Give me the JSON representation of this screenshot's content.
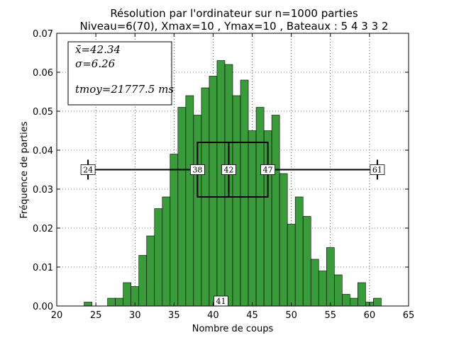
{
  "chart_data": {
    "type": "bar",
    "title_line1": "Résolution par l'ordinateur sur n=1000 parties",
    "title_line2": "Niveau=6(70), Xmax=10 , Ymax=10 , Bateaux : 5 4 3 3 2",
    "xlabel": "Nombre de coups",
    "ylabel": "Fréquence de parties",
    "xlim": [
      20,
      65
    ],
    "ylim": [
      0,
      0.07
    ],
    "xticks": [
      20,
      25,
      30,
      35,
      40,
      45,
      50,
      55,
      60,
      65
    ],
    "yticks": [
      0.0,
      0.01,
      0.02,
      0.03,
      0.04,
      0.05,
      0.06,
      0.07
    ],
    "ytick_labels": [
      "0.00",
      "0.01",
      "0.02",
      "0.03",
      "0.04",
      "0.05",
      "0.06",
      "0.07"
    ],
    "grid": true,
    "bar_color": "#3a9b3a",
    "bar_edge_color": "#000000",
    "bins": [
      24,
      25,
      26,
      27,
      28,
      29,
      30,
      31,
      32,
      33,
      34,
      35,
      36,
      37,
      38,
      39,
      40,
      41,
      42,
      43,
      44,
      45,
      46,
      47,
      48,
      49,
      50,
      51,
      52,
      53,
      54,
      55,
      56,
      57,
      58,
      59,
      60,
      61
    ],
    "values": [
      0.001,
      0.0,
      0.0,
      0.002,
      0.002,
      0.006,
      0.005,
      0.013,
      0.018,
      0.025,
      0.028,
      0.039,
      0.051,
      0.054,
      0.049,
      0.056,
      0.059,
      0.063,
      0.062,
      0.054,
      0.058,
      0.045,
      0.051,
      0.045,
      0.049,
      0.034,
      0.021,
      0.028,
      0.023,
      0.012,
      0.009,
      0.015,
      0.008,
      0.003,
      0.002,
      0.006,
      0.001,
      0.002
    ],
    "boxplot": {
      "min": 24,
      "q1": 38,
      "median": 42,
      "q3": 47,
      "max": 61,
      "y": 0.035,
      "box_low": 0.028,
      "box_high": 0.042,
      "labels": {
        "min": "24",
        "q1": "38",
        "median": "42",
        "q3": "47",
        "max": "61"
      }
    },
    "mode_marker": {
      "x": 41,
      "label": "41"
    },
    "stats": {
      "mean": "x̄=42.34",
      "sigma": "σ=6.26",
      "tmoy": "tmoy=21777.5 ms"
    }
  }
}
